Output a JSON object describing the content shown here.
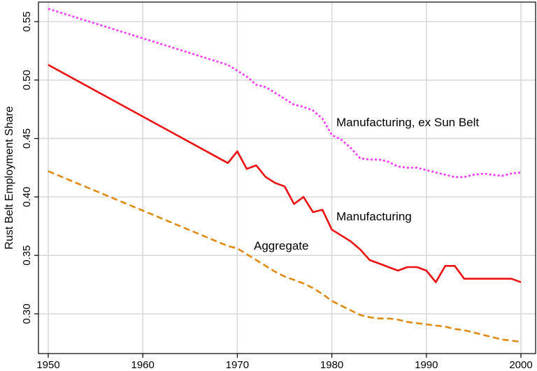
{
  "chart_data": {
    "type": "line",
    "title": "",
    "xlabel": "",
    "ylabel": "Rust Belt Employment Share",
    "xlim": [
      1950,
      2000
    ],
    "ylim": [
      0.27,
      0.56
    ],
    "grid": true,
    "xticks": [
      1950,
      1960,
      1970,
      1980,
      1990,
      2000
    ],
    "yticks": [
      0.3,
      0.35,
      0.4,
      0.45,
      0.5,
      0.55
    ],
    "xtick_labels": [
      "1950",
      "1960",
      "1970",
      "1980",
      "1990",
      "2000"
    ],
    "ytick_labels": [
      "0.30",
      "0.35",
      "0.40",
      "0.45",
      "0.50",
      "0.55"
    ],
    "series": [
      {
        "name": "Manufacturing, ex Sun Belt",
        "label": "Manufacturing, ex Sun Belt",
        "color": "#ff33ff",
        "style": "dotted",
        "points": [
          [
            1950,
            0.561
          ],
          [
            1969,
            0.513
          ],
          [
            1970,
            0.508
          ],
          [
            1971,
            0.503
          ],
          [
            1972,
            0.496
          ],
          [
            1973,
            0.494
          ],
          [
            1974,
            0.489
          ],
          [
            1975,
            0.484
          ],
          [
            1976,
            0.479
          ],
          [
            1977,
            0.477
          ],
          [
            1978,
            0.474
          ],
          [
            1979,
            0.467
          ],
          [
            1980,
            0.453
          ],
          [
            1981,
            0.449
          ],
          [
            1982,
            0.442
          ],
          [
            1983,
            0.433
          ],
          [
            1984,
            0.432
          ],
          [
            1985,
            0.432
          ],
          [
            1986,
            0.43
          ],
          [
            1987,
            0.426
          ],
          [
            1988,
            0.425
          ],
          [
            1989,
            0.425
          ],
          [
            1990,
            0.423
          ],
          [
            1991,
            0.421
          ],
          [
            1992,
            0.419
          ],
          [
            1993,
            0.417
          ],
          [
            1994,
            0.417
          ],
          [
            1995,
            0.419
          ],
          [
            1996,
            0.42
          ],
          [
            1997,
            0.419
          ],
          [
            1998,
            0.418
          ],
          [
            1999,
            0.42
          ],
          [
            2000,
            0.421
          ]
        ]
      },
      {
        "name": "Manufacturing",
        "label": "Manufacturing",
        "color": "#ee1111",
        "style": "solid",
        "points": [
          [
            1950,
            0.513
          ],
          [
            1969,
            0.429
          ],
          [
            1970,
            0.439
          ],
          [
            1971,
            0.424
          ],
          [
            1972,
            0.427
          ],
          [
            1973,
            0.417
          ],
          [
            1974,
            0.412
          ],
          [
            1975,
            0.409
          ],
          [
            1976,
            0.394
          ],
          [
            1977,
            0.4
          ],
          [
            1978,
            0.387
          ],
          [
            1979,
            0.389
          ],
          [
            1980,
            0.372
          ],
          [
            1981,
            0.367
          ],
          [
            1982,
            0.362
          ],
          [
            1983,
            0.355
          ],
          [
            1984,
            0.346
          ],
          [
            1985,
            0.343
          ],
          [
            1986,
            0.34
          ],
          [
            1987,
            0.337
          ],
          [
            1988,
            0.34
          ],
          [
            1989,
            0.34
          ],
          [
            1990,
            0.337
          ],
          [
            1991,
            0.327
          ],
          [
            1992,
            0.341
          ],
          [
            1993,
            0.341
          ],
          [
            1994,
            0.33
          ],
          [
            1995,
            0.33
          ],
          [
            1996,
            0.33
          ],
          [
            1997,
            0.33
          ],
          [
            1998,
            0.33
          ],
          [
            1999,
            0.33
          ],
          [
            2000,
            0.327
          ]
        ]
      },
      {
        "name": "Aggregate",
        "label": "Aggregate",
        "color": "#e08a10",
        "style": "dashed",
        "points": [
          [
            1950,
            0.422
          ],
          [
            1969,
            0.358
          ],
          [
            1970,
            0.356
          ],
          [
            1971,
            0.351
          ],
          [
            1972,
            0.346
          ],
          [
            1973,
            0.341
          ],
          [
            1974,
            0.336
          ],
          [
            1975,
            0.332
          ],
          [
            1976,
            0.329
          ],
          [
            1977,
            0.326
          ],
          [
            1978,
            0.322
          ],
          [
            1979,
            0.317
          ],
          [
            1980,
            0.311
          ],
          [
            1981,
            0.307
          ],
          [
            1982,
            0.303
          ],
          [
            1983,
            0.299
          ],
          [
            1984,
            0.297
          ],
          [
            1985,
            0.296
          ],
          [
            1986,
            0.296
          ],
          [
            1987,
            0.295
          ],
          [
            1988,
            0.293
          ],
          [
            1989,
            0.292
          ],
          [
            1990,
            0.291
          ],
          [
            1991,
            0.29
          ],
          [
            1992,
            0.289
          ],
          [
            1993,
            0.287
          ],
          [
            1994,
            0.286
          ],
          [
            1995,
            0.284
          ],
          [
            1996,
            0.282
          ],
          [
            1997,
            0.28
          ],
          [
            1998,
            0.278
          ],
          [
            1999,
            0.277
          ],
          [
            2000,
            0.276
          ]
        ]
      }
    ]
  }
}
